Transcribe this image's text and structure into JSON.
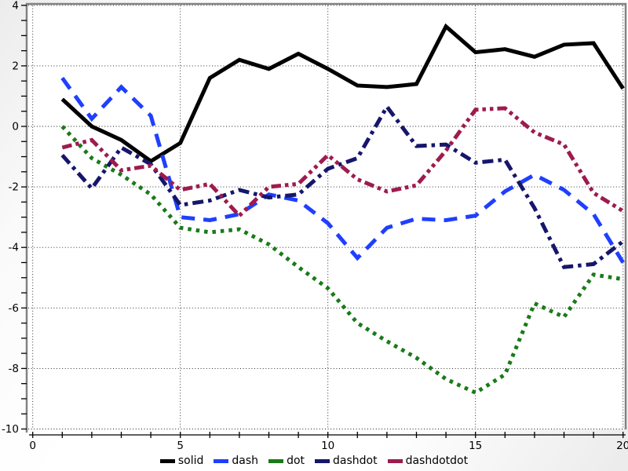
{
  "chart_data": {
    "type": "line",
    "title": "",
    "xlabel": "",
    "ylabel": "",
    "x": [
      1,
      2,
      3,
      4,
      5,
      6,
      7,
      8,
      9,
      10,
      11,
      12,
      13,
      14,
      15,
      16,
      17,
      18,
      19,
      20
    ],
    "series": [
      {
        "name": "solid",
        "color": "#000000",
        "dash": "solid",
        "values": [
          0.9,
          0.0,
          -0.45,
          -1.15,
          -0.55,
          1.6,
          2.2,
          1.9,
          2.4,
          1.9,
          1.35,
          1.3,
          1.4,
          3.3,
          2.45,
          2.55,
          2.3,
          2.7,
          2.75,
          1.25
        ]
      },
      {
        "name": "dash",
        "color": "#1f3fff",
        "dash": "dash",
        "values": [
          1.6,
          0.25,
          1.3,
          0.35,
          -3.0,
          -3.1,
          -2.9,
          -2.25,
          -2.45,
          -3.2,
          -4.35,
          -3.35,
          -3.05,
          -3.1,
          -2.95,
          -2.15,
          -1.6,
          -2.1,
          -2.9,
          -4.5
        ]
      },
      {
        "name": "dot",
        "color": "#1a7a1a",
        "dash": "dot",
        "values": [
          0.0,
          -1.05,
          -1.6,
          -2.25,
          -3.35,
          -3.5,
          -3.4,
          -3.9,
          -4.65,
          -5.35,
          -6.5,
          -7.1,
          -7.65,
          -8.35,
          -8.8,
          -8.2,
          -5.85,
          -6.3,
          -4.9,
          -5.05
        ]
      },
      {
        "name": "dashdot",
        "color": "#16166b",
        "dash": "dashdot",
        "values": [
          -0.95,
          -2.05,
          -0.7,
          -1.25,
          -2.6,
          -2.45,
          -2.1,
          -2.35,
          -2.25,
          -1.4,
          -1.05,
          0.65,
          -0.65,
          -0.6,
          -1.2,
          -1.1,
          -2.7,
          -4.65,
          -4.55,
          -3.8
        ]
      },
      {
        "name": "dashdotdot",
        "color": "#9e1b4e",
        "dash": "dashdotdot",
        "values": [
          -0.7,
          -0.45,
          -1.45,
          -1.3,
          -2.1,
          -1.9,
          -2.95,
          -2.0,
          -1.9,
          -0.95,
          -1.75,
          -2.15,
          -1.95,
          -0.8,
          0.55,
          0.6,
          -0.2,
          -0.6,
          -2.2,
          -2.8
        ]
      }
    ],
    "xlim": [
      0,
      20
    ],
    "ylim": [
      -10,
      4
    ],
    "x_tick_labels": [
      0,
      5,
      10,
      15,
      20
    ],
    "y_tick_labels": [
      4,
      2,
      0,
      -2,
      -4,
      -6,
      -8,
      -10
    ],
    "x_minor_tick_step": 1,
    "y_minor_tick_step": 0.5,
    "grid": "dotted",
    "legend_position": "bottom-center",
    "axis_color": "#000000",
    "spine_color": "#828282",
    "plot_background": "#ffffff"
  }
}
